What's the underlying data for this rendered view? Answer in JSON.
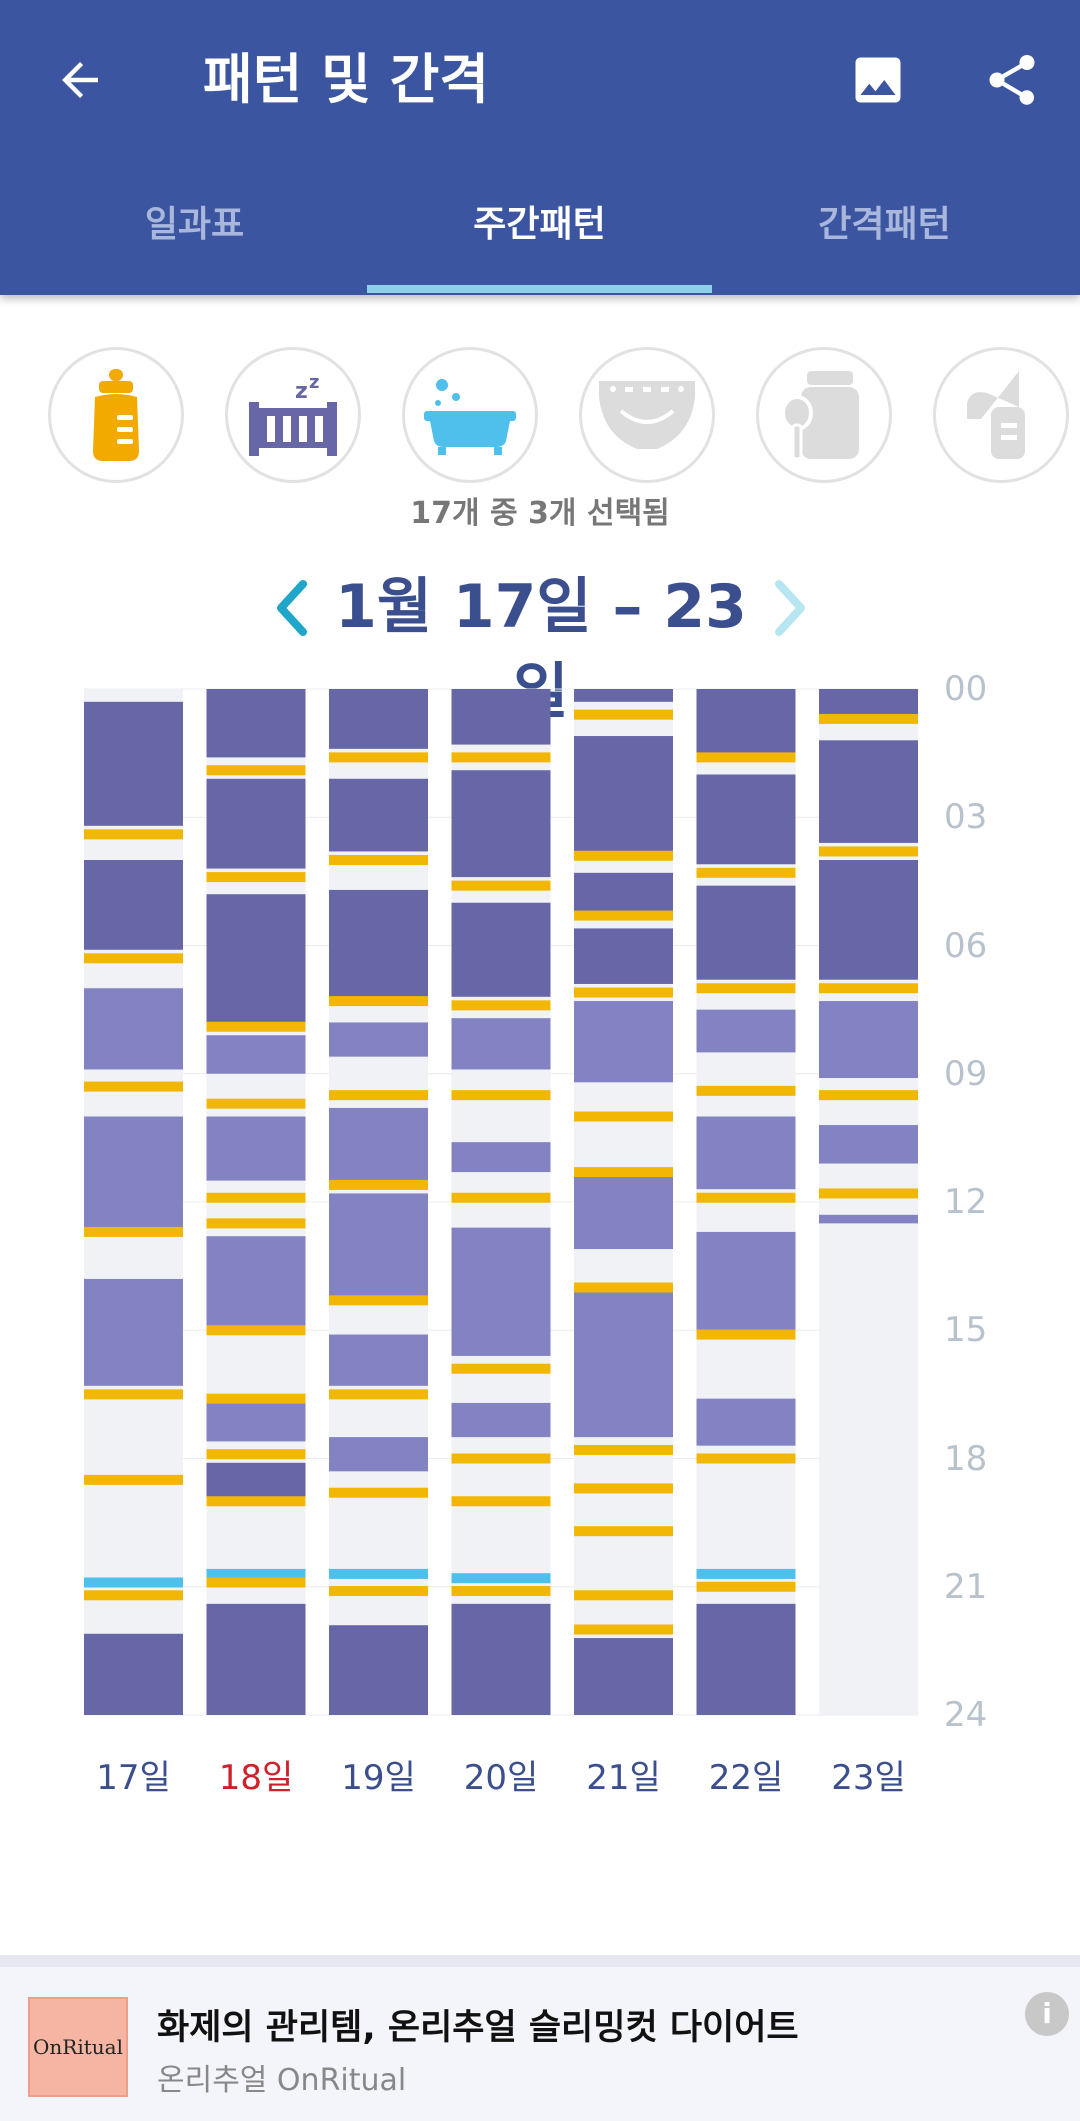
{
  "appbar": {
    "title": "패턴 및 간격",
    "tabs": [
      {
        "label": "일과표",
        "active": false
      },
      {
        "label": "주간패턴",
        "active": true
      },
      {
        "label": "간격패턴",
        "active": false
      }
    ]
  },
  "categories": [
    {
      "icon": "baby-bottle-icon",
      "selected": true
    },
    {
      "icon": "crib-sleep-icon",
      "selected": true
    },
    {
      "icon": "bathtub-icon",
      "selected": true
    },
    {
      "icon": "diaper-icon",
      "selected": false
    },
    {
      "icon": "baby-food-jar-icon",
      "selected": false
    },
    {
      "icon": "breast-pump-icon",
      "selected": false
    }
  ],
  "selection_summary": "17개 중 3개 선택됨",
  "week": {
    "label": "1월 17일 – 23일"
  },
  "colors": {
    "header": "#3b55a0",
    "night_sleep": "#6767a8",
    "nap": "#8382c2",
    "feeding": "#f2b705",
    "bath": "#4fbfec",
    "empty": "#f0f2f5",
    "day_label": "#3b4f8f",
    "sunday_label": "#d0202a"
  },
  "chart_data": {
    "type": "timeline",
    "title": "주간패턴",
    "y_axis": {
      "labels": [
        "00",
        "03",
        "06",
        "09",
        "12",
        "15",
        "18",
        "21",
        "24"
      ],
      "range_hours": [
        0,
        24
      ]
    },
    "days": [
      {
        "label": "17일",
        "sunday": false,
        "sleep": [
          [
            0.3,
            3.2,
            "night"
          ],
          [
            4.0,
            6.1,
            "night"
          ],
          [
            7.0,
            8.9,
            "nap"
          ],
          [
            10.0,
            12.6,
            "nap"
          ],
          [
            13.8,
            16.3,
            "nap"
          ],
          [
            22.1,
            24,
            "night"
          ]
        ],
        "feeding": [
          3.4,
          6.3,
          9.3,
          12.7,
          16.5,
          18.5,
          21.2
        ],
        "bath": [
          20.9
        ]
      },
      {
        "label": "18일",
        "sunday": true,
        "sleep": [
          [
            0,
            1.6,
            "night"
          ],
          [
            2.1,
            4.2,
            "night"
          ],
          [
            4.8,
            7.8,
            "night"
          ],
          [
            8.1,
            9.0,
            "nap"
          ],
          [
            10.0,
            11.5,
            "nap"
          ],
          [
            12.8,
            14.9,
            "nap"
          ],
          [
            16.6,
            17.6,
            "nap"
          ],
          [
            18.1,
            18.9,
            "night"
          ],
          [
            21.4,
            24,
            "night"
          ]
        ],
        "feeding": [
          1.9,
          4.4,
          7.9,
          9.7,
          11.9,
          12.5,
          15.0,
          16.6,
          17.9,
          19.0,
          20.9
        ],
        "bath": [
          20.7
        ]
      },
      {
        "label": "19일",
        "sunday": false,
        "sleep": [
          [
            0,
            1.4,
            "night"
          ],
          [
            2.1,
            3.8,
            "night"
          ],
          [
            4.7,
            7.2,
            "night"
          ],
          [
            7.8,
            8.6,
            "nap"
          ],
          [
            9.8,
            11.5,
            "nap"
          ],
          [
            11.8,
            14.2,
            "nap"
          ],
          [
            15.1,
            16.3,
            "nap"
          ],
          [
            17.5,
            18.3,
            "nap"
          ],
          [
            21.9,
            24,
            "night"
          ]
        ],
        "feeding": [
          1.6,
          4.0,
          7.3,
          9.5,
          11.6,
          14.3,
          16.5,
          18.8,
          21.1
        ],
        "bath": [
          20.7
        ]
      },
      {
        "label": "20일",
        "sunday": false,
        "sleep": [
          [
            0,
            1.3,
            "night"
          ],
          [
            1.9,
            4.4,
            "night"
          ],
          [
            5.0,
            7.2,
            "night"
          ],
          [
            7.7,
            8.9,
            "nap"
          ],
          [
            10.6,
            11.3,
            "nap"
          ],
          [
            12.6,
            15.6,
            "nap"
          ],
          [
            16.7,
            17.5,
            "nap"
          ],
          [
            21.4,
            24,
            "night"
          ]
        ],
        "feeding": [
          1.6,
          4.6,
          7.4,
          9.5,
          11.9,
          15.9,
          18.0,
          19.0,
          21.1
        ],
        "bath": [
          20.8
        ]
      },
      {
        "label": "21일",
        "sunday": false,
        "sleep": [
          [
            0,
            0.3,
            "night"
          ],
          [
            1.1,
            3.8,
            "night"
          ],
          [
            4.3,
            5.2,
            "night"
          ],
          [
            5.6,
            6.9,
            "night"
          ],
          [
            7.3,
            9.2,
            "nap"
          ],
          [
            11.3,
            13.1,
            "nap"
          ],
          [
            14.0,
            17.5,
            "nap"
          ],
          [
            22.2,
            24,
            "night"
          ]
        ],
        "feeding": [
          0.6,
          3.9,
          5.3,
          7.1,
          10.0,
          11.3,
          14.0,
          17.8,
          18.7,
          19.7,
          21.2,
          22.0
        ],
        "bath": []
      },
      {
        "label": "22일",
        "sunday": false,
        "sleep": [
          [
            0,
            1.5,
            "night"
          ],
          [
            2.0,
            4.1,
            "night"
          ],
          [
            4.6,
            6.8,
            "night"
          ],
          [
            7.5,
            8.5,
            "nap"
          ],
          [
            10.0,
            11.7,
            "nap"
          ],
          [
            12.7,
            15.0,
            "nap"
          ],
          [
            16.6,
            17.7,
            "nap"
          ],
          [
            21.4,
            24,
            "night"
          ]
        ],
        "feeding": [
          1.6,
          4.3,
          7.0,
          9.4,
          11.9,
          15.1,
          18.0,
          21.0
        ],
        "bath": [
          20.7
        ]
      },
      {
        "label": "23일",
        "sunday": false,
        "sleep": [
          [
            0,
            0.6,
            "night"
          ],
          [
            1.2,
            3.6,
            "night"
          ],
          [
            4.0,
            6.8,
            "night"
          ],
          [
            7.3,
            9.1,
            "nap"
          ],
          [
            10.2,
            11.1,
            "nap"
          ],
          [
            12.3,
            12.5,
            "nap"
          ]
        ],
        "feeding": [
          0.7,
          3.8,
          7.0,
          9.5,
          11.8
        ],
        "bath": []
      }
    ]
  },
  "ad": {
    "logo_text": "OnRitual",
    "title": "화제의 관리템, 온리추얼 슬리밍컷 다이어트",
    "subtitle": "온리추얼 OnRitual",
    "info_glyph": "i"
  }
}
